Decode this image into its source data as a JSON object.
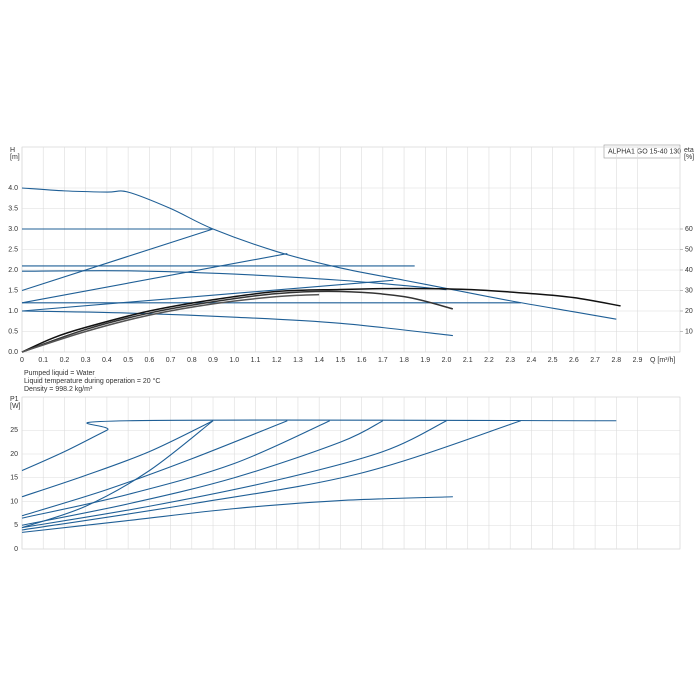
{
  "chart_data": [
    {
      "type": "line",
      "title": "ALPHA1 GO 15-40 130",
      "y_label": "H",
      "y_unit": "[m]",
      "y2_label": "eta",
      "y2_unit": "[%]",
      "x_label": "Q [m³/h]",
      "notes": [
        "Pumped liquid = Water",
        "Liquid temperature during operation = 20 °C",
        "Density = 998.2 kg/m³"
      ],
      "xlim": [
        0,
        3.1
      ],
      "xticks": [
        0,
        0.1,
        0.2,
        0.3,
        0.4,
        0.5,
        0.6,
        0.7,
        0.8,
        0.9,
        {
          "value": 1,
          "label": "1.0"
        },
        1.1,
        1.2,
        1.3,
        1.4,
        1.5,
        1.6,
        1.7,
        1.8,
        1.9,
        {
          "value": 2,
          "label": "2.0"
        },
        2.1,
        2.2,
        2.3,
        2.4,
        2.5,
        2.6,
        2.7,
        2.8,
        2.9
      ],
      "ylim": [
        0,
        5
      ],
      "yticks": [
        {
          "value": 0,
          "label": "0.0"
        },
        0.5,
        {
          "value": 1,
          "label": "1.0"
        },
        1.5,
        {
          "value": 2,
          "label": "2.0"
        },
        2.5,
        {
          "value": 3,
          "label": "3.0"
        },
        3.5,
        {
          "value": 4,
          "label": "4.0"
        }
      ],
      "y2lim": [
        0,
        100
      ],
      "y2ticks": [
        10,
        20,
        30,
        40,
        50,
        60
      ],
      "grid": true,
      "series": [
        {
          "color": "#1f5f96",
          "x": [
            0,
            0.2,
            0.4,
            0.5,
            0.7,
            0.9,
            1.2,
            1.5,
            1.8,
            2.0,
            2.3,
            2.6,
            2.8
          ],
          "values": [
            4.0,
            3.93,
            3.9,
            3.9,
            3.5,
            3.0,
            2.45,
            2.05,
            1.75,
            1.55,
            1.25,
            0.98,
            0.8
          ]
        },
        {
          "color": "#1f5f96",
          "x": [
            0,
            0.9
          ],
          "values": [
            3,
            3
          ]
        },
        {
          "color": "#1f5f96",
          "x": [
            0,
            1.85
          ],
          "values": [
            2.1,
            2.1
          ]
        },
        {
          "color": "#1f5f96",
          "x": [
            0,
            2.35
          ],
          "values": [
            1.2,
            1.2
          ]
        },
        {
          "color": "#1f5f96",
          "x": [
            0,
            0.9
          ],
          "values": [
            1.5,
            3.0
          ]
        },
        {
          "color": "#1f5f96",
          "x": [
            0,
            1.25
          ],
          "values": [
            1.2,
            2.4
          ]
        },
        {
          "color": "#1f5f96",
          "x": [
            0,
            1.75
          ],
          "values": [
            1.0,
            1.75
          ]
        },
        {
          "color": "#1f5f96",
          "x": [
            0,
            0.5,
            1.0,
            1.5,
            1.8,
            2.0
          ],
          "values": [
            1.97,
            1.98,
            1.9,
            1.75,
            1.62,
            1.52
          ]
        },
        {
          "color": "#1f5f96",
          "x": [
            0,
            0.5,
            1.0,
            1.5,
            2.03
          ],
          "values": [
            1.0,
            0.95,
            0.85,
            0.7,
            0.4
          ]
        },
        {
          "color": "#111111",
          "axis": "y2",
          "x": [
            0,
            0.15,
            0.3,
            0.6,
            0.9,
            1.2,
            1.5,
            1.8,
            2.1,
            2.4,
            2.6,
            2.82
          ],
          "values": [
            0,
            7,
            12,
            20,
            25.5,
            29.5,
            30.5,
            31,
            30.5,
            28.5,
            26.5,
            22.5
          ]
        },
        {
          "color": "#333333",
          "axis": "y2",
          "x": [
            0,
            0.3,
            0.6,
            0.9,
            1.2,
            1.5,
            1.8,
            2.03
          ],
          "values": [
            0,
            11,
            19,
            24.5,
            28.5,
            29.5,
            27,
            21
          ]
        },
        {
          "color": "#555555",
          "axis": "y2",
          "x": [
            0,
            0.3,
            0.6,
            0.9,
            1.2,
            1.4
          ],
          "values": [
            0,
            10,
            18,
            23.5,
            27,
            28
          ]
        }
      ]
    },
    {
      "type": "line",
      "y_label": "P1",
      "y_unit": "[W]",
      "xlim": [
        0,
        3.1
      ],
      "xticks": [
        0,
        0.1,
        0.2,
        0.3,
        0.4,
        0.5,
        0.6,
        0.7,
        0.8,
        0.9,
        1,
        1.1,
        1.2,
        1.3,
        1.4,
        1.5,
        1.6,
        1.7,
        1.8,
        1.9,
        2,
        2.1,
        2.2,
        2.3,
        2.4,
        2.5,
        2.6,
        2.7,
        2.8,
        2.9
      ],
      "ylim": [
        0,
        32
      ],
      "yticks": [
        0,
        5,
        10,
        15,
        20,
        25
      ],
      "grid": true,
      "series": [
        {
          "color": "#1f5f96",
          "x": [
            0,
            0.2,
            0.4,
            0.5,
            2.8
          ],
          "values": [
            16.5,
            20.5,
            25,
            27,
            27
          ]
        },
        {
          "color": "#1f5f96",
          "x": [
            0,
            0.3,
            0.6,
            0.9
          ],
          "values": [
            11,
            15.5,
            20.5,
            27
          ]
        },
        {
          "color": "#1f5f96",
          "x": [
            0,
            0.3,
            0.6,
            0.9
          ],
          "values": [
            4.5,
            9,
            16.5,
            27
          ]
        },
        {
          "color": "#1f5f96",
          "x": [
            0,
            0.4,
            0.8,
            1.25
          ],
          "values": [
            7,
            12.5,
            19,
            27
          ]
        },
        {
          "color": "#1f5f96",
          "x": [
            0,
            0.5,
            1.0,
            1.45
          ],
          "values": [
            6.5,
            11.5,
            18,
            27
          ]
        },
        {
          "color": "#1f5f96",
          "x": [
            0,
            0.5,
            1.0,
            1.5,
            1.7
          ],
          "values": [
            5,
            9.5,
            15,
            22.5,
            27
          ]
        },
        {
          "color": "#1f5f96",
          "x": [
            0,
            0.6,
            1.2,
            1.7,
            2.0
          ],
          "values": [
            4.5,
            9,
            14.5,
            20.5,
            27
          ]
        },
        {
          "color": "#1f5f96",
          "x": [
            0,
            0.8,
            1.6,
            2.35
          ],
          "values": [
            4,
            9.5,
            16,
            27
          ]
        },
        {
          "color": "#1f5f96",
          "x": [
            0,
            0.5,
            1.0,
            1.5,
            2.03
          ],
          "values": [
            3.5,
            6,
            8.5,
            10.2,
            11
          ]
        }
      ]
    }
  ]
}
